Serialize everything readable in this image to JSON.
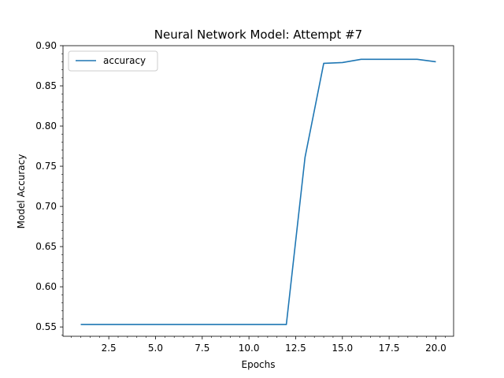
{
  "chart_data": {
    "type": "line",
    "title": "Neural Network Model: Attempt #7",
    "xlabel": "Epochs",
    "ylabel": "Model Accuracy",
    "xlim": [
      0.05,
      20.95
    ],
    "ylim": [
      0.5384,
      0.9
    ],
    "xticks": [
      2.5,
      5.0,
      7.5,
      10.0,
      12.5,
      15.0,
      17.5,
      20.0
    ],
    "xtick_labels": [
      "2.5",
      "5.0",
      "7.5",
      "10.0",
      "12.5",
      "15.0",
      "17.5",
      "20.0"
    ],
    "yticks": [
      0.55,
      0.6,
      0.65,
      0.7,
      0.75,
      0.8,
      0.85,
      0.9
    ],
    "ytick_labels": [
      "0.55",
      "0.60",
      "0.65",
      "0.70",
      "0.75",
      "0.80",
      "0.85",
      "0.90"
    ],
    "minor_ticks": true,
    "grid": false,
    "legend_position": "top-left",
    "series": [
      {
        "name": "accuracy",
        "color": "#1f77b4",
        "x": [
          1,
          2,
          3,
          4,
          5,
          6,
          7,
          8,
          9,
          10,
          11,
          12,
          13,
          14,
          15,
          16,
          17,
          18,
          19,
          20
        ],
        "y": [
          0.553,
          0.553,
          0.553,
          0.553,
          0.553,
          0.553,
          0.553,
          0.553,
          0.553,
          0.553,
          0.553,
          0.553,
          0.761,
          0.878,
          0.879,
          0.883,
          0.883,
          0.883,
          0.883,
          0.88
        ]
      }
    ]
  }
}
